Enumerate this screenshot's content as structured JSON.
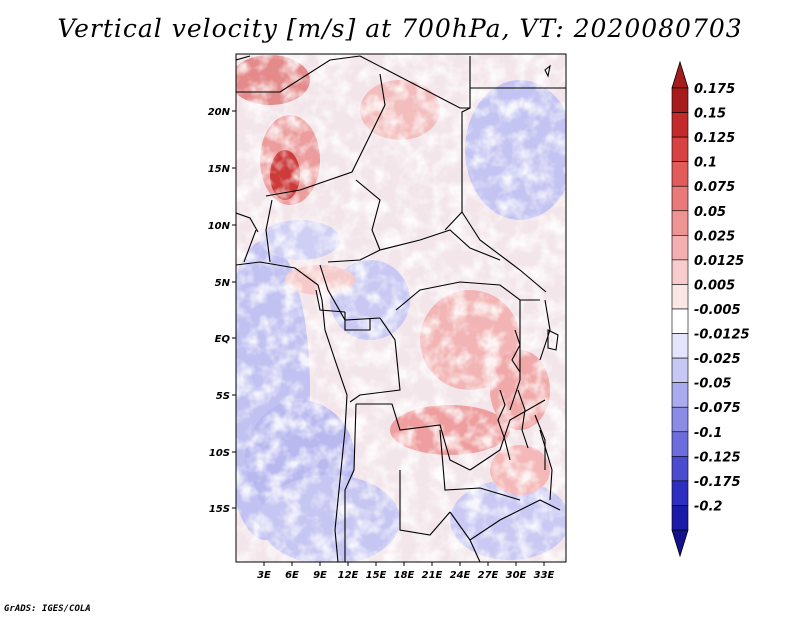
{
  "title": "Vertical velocity [m/s] at 700hPa, VT: 2020080703",
  "credit": "GrADS: IGES/COLA",
  "map": {
    "lat_labels": [
      "20N",
      "15N",
      "10N",
      "5N",
      "EQ",
      "5S",
      "10S",
      "15S"
    ],
    "lon_labels": [
      "3E",
      "6E",
      "9E",
      "12E",
      "15E",
      "18E",
      "21E",
      "24E",
      "27E",
      "30E",
      "33E"
    ]
  },
  "colorbar": {
    "levels": [
      "0.175",
      "0.15",
      "0.125",
      "0.1",
      "0.075",
      "0.05",
      "0.025",
      "0.0125",
      "0.005",
      "-0.005",
      "-0.0125",
      "-0.025",
      "-0.05",
      "-0.075",
      "-0.1",
      "-0.125",
      "-0.175",
      "-0.2"
    ],
    "colors": [
      "#a61c1c",
      "#c32a2a",
      "#d84242",
      "#e25c5c",
      "#ea7a7a",
      "#ef9494",
      "#f4b0b0",
      "#f8cccc",
      "#fbe6e6",
      "#ffffff",
      "#e4e4fb",
      "#c8c8f5",
      "#aaaaee",
      "#8c8ce6",
      "#6c6cdc",
      "#4c4cd0",
      "#2e2ec0",
      "#1a1aa6"
    ],
    "top_arrow_color": "#a61c1c",
    "bottom_arrow_color": "#12128e"
  }
}
